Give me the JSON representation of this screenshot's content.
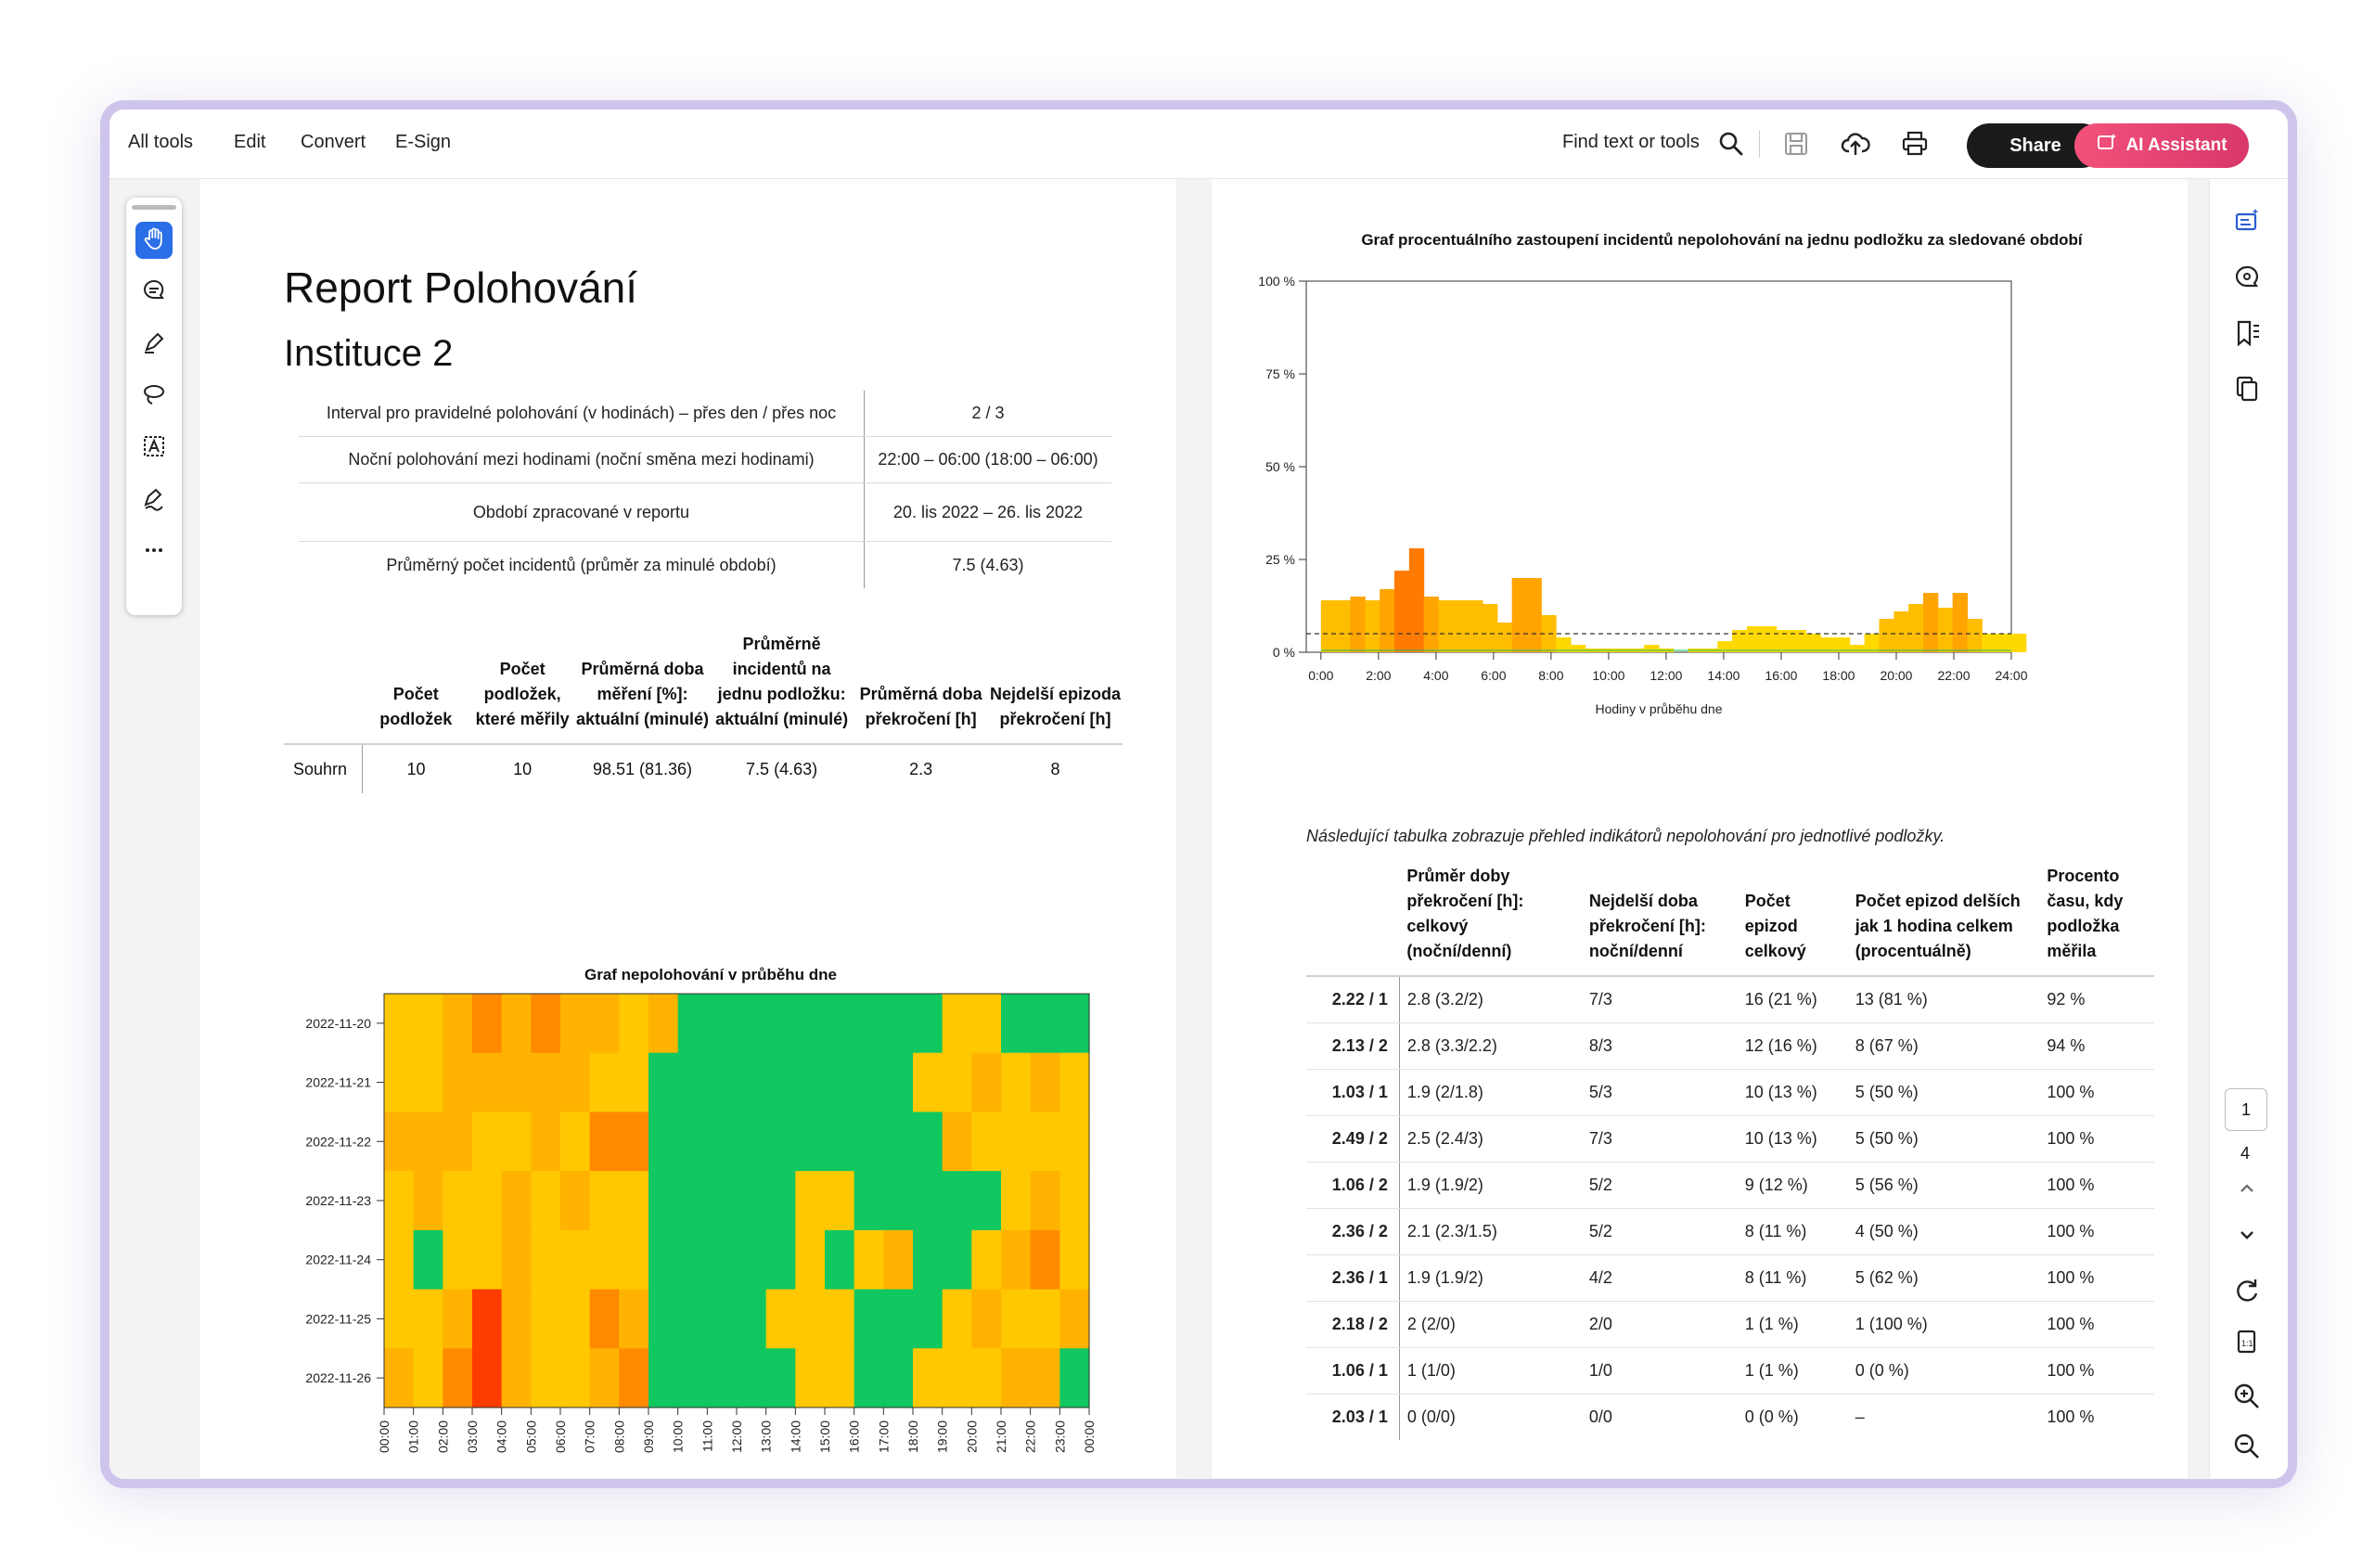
{
  "toolbar": {
    "menu": [
      "All tools",
      "Edit",
      "Convert",
      "E-Sign"
    ],
    "find_label": "Find text or tools",
    "share_label": "Share",
    "ai_label": "AI Assistant"
  },
  "left_tools": [
    "hand-icon",
    "comment-icon",
    "highlight-pen-icon",
    "lasso-draw-icon",
    "text-select-icon",
    "signature-icon",
    "more-icon"
  ],
  "right_rail": {
    "current_page": "1",
    "total_pages": "4"
  },
  "report": {
    "title": "Report Polohování",
    "subtitle": "Instituce 2",
    "info_rows": [
      {
        "label": "Interval pro pravidelné polohování (v hodinách) – přes den / přes noc",
        "value": "2 / 3"
      },
      {
        "label": "Noční polohování mezi hodinami (noční směna mezi hodinami)",
        "value": "22:00 – 06:00 (18:00 – 06:00)"
      },
      {
        "label": "Období zpracované v reportu",
        "value": "20. lis 2022 – 26. lis 2022"
      },
      {
        "label": "Průměrný počet incidentů (průměr za minulé období)",
        "value": "7.5 (4.63)"
      }
    ],
    "summary_headers": [
      "",
      "Počet podložek",
      "Počet podložek, které měřily",
      "Průměrná doba měření [%]: aktuální (minulé)",
      "Průměrně incidentů na jednu podložku: aktuální (minulé)",
      "Průměrná doba překročení [h]",
      "Nejdelší epizoda překročení [h]"
    ],
    "summary_row": [
      "Souhrn",
      "10",
      "10",
      "98.51 (81.36)",
      "7.5 (4.63)",
      "2.3",
      "8"
    ],
    "heatmap_title": "Graf nepolohování v průběhu dne",
    "heatmap_dates": [
      "2022-11-20",
      "2022-11-21",
      "2022-11-22",
      "2022-11-23",
      "2022-11-24",
      "2022-11-25",
      "2022-11-26"
    ],
    "heatmap_hours": [
      "00:00",
      "01:00",
      "02:00",
      "03:00",
      "04:00",
      "05:00",
      "06:00",
      "07:00",
      "08:00",
      "09:00",
      "10:00",
      "11:00",
      "12:00",
      "13:00",
      "14:00",
      "15:00",
      "16:00",
      "17:00",
      "18:00",
      "19:00",
      "20:00",
      "21:00",
      "22:00",
      "23:00",
      "00:00"
    ],
    "heatmap_colors": {
      "green": "#10c760",
      "yellow": "#ffc800",
      "lightorange": "#ffb300",
      "orange": "#ff8a00",
      "red": "#ff3c00"
    },
    "line_chart_title": "Graf procentuálního zastoupení incidentů nepolohování na jednu podložku za sledované období",
    "line_chart_xlabel": "Hodiny v průběhu dne",
    "table_caption": "Následující tabulka zobrazuje přehled indikátorů nepolohování pro jednotlivé podložky.",
    "pad_headers": [
      "",
      "Průměr doby překročení [h]: celkový (noční/denní)",
      "Nejdelší doba překročení [h]: noční/denní",
      "Počet epizod celkový",
      "Počet epizod delších jak 1 hodina celkem (procentuálně)",
      "Procento času, kdy podložka měřila"
    ],
    "pad_rows": [
      [
        "2.22 / 1",
        "2.8 (3.2/2)",
        "7/3",
        "16 (21 %)",
        "13 (81 %)",
        "92 %"
      ],
      [
        "2.13 / 2",
        "2.8 (3.3/2.2)",
        "8/3",
        "12 (16 %)",
        "8 (67 %)",
        "94 %"
      ],
      [
        "1.03 / 1",
        "1.9 (2/1.8)",
        "5/3",
        "10 (13 %)",
        "5 (50 %)",
        "100 %"
      ],
      [
        "2.49 / 2",
        "2.5 (2.4/3)",
        "7/3",
        "10 (13 %)",
        "5 (50 %)",
        "100 %"
      ],
      [
        "1.06 / 2",
        "1.9 (1.9/2)",
        "5/2",
        "9 (12 %)",
        "5 (56 %)",
        "100 %"
      ],
      [
        "2.36 / 2",
        "2.1 (2.3/1.5)",
        "5/2",
        "8 (11 %)",
        "4 (50 %)",
        "100 %"
      ],
      [
        "2.36 / 1",
        "1.9 (1.9/2)",
        "4/2",
        "8 (11 %)",
        "5 (62 %)",
        "100 %"
      ],
      [
        "2.18 / 2",
        "2 (2/0)",
        "2/0",
        "1 (1 %)",
        "1 (100 %)",
        "100 %"
      ],
      [
        "1.06 / 1",
        "1 (1/0)",
        "1/0",
        "1 (1 %)",
        "0 (0 %)",
        "100 %"
      ],
      [
        "2.03 / 1",
        "0 (0/0)",
        "0/0",
        "0 (0 %)",
        "–",
        "100 %"
      ]
    ]
  },
  "chart_data": [
    {
      "type": "heatmap",
      "title": "Graf nepolohování v průběhu dne",
      "y_categories": [
        "2022-11-20",
        "2022-11-21",
        "2022-11-22",
        "2022-11-23",
        "2022-11-24",
        "2022-11-25",
        "2022-11-26"
      ],
      "x_categories": [
        "00:00",
        "01:00",
        "02:00",
        "03:00",
        "04:00",
        "05:00",
        "06:00",
        "07:00",
        "08:00",
        "09:00",
        "10:00",
        "11:00",
        "12:00",
        "13:00",
        "14:00",
        "15:00",
        "16:00",
        "17:00",
        "18:00",
        "19:00",
        "20:00",
        "21:00",
        "22:00",
        "23:00"
      ],
      "levels_legend": "0=green, 1=yellow, 2=light orange, 3=orange, 4=red",
      "values": [
        [
          1,
          1,
          2,
          3,
          2,
          3,
          2,
          2,
          1,
          2,
          0,
          0,
          0,
          0,
          0,
          0,
          0,
          0,
          0,
          1,
          1,
          0,
          0,
          0
        ],
        [
          1,
          1,
          2,
          2,
          2,
          2,
          2,
          1,
          1,
          0,
          0,
          0,
          0,
          0,
          0,
          0,
          0,
          0,
          1,
          1,
          2,
          1,
          2,
          1
        ],
        [
          2,
          2,
          2,
          1,
          1,
          2,
          1,
          3,
          3,
          0,
          0,
          0,
          0,
          0,
          0,
          0,
          0,
          0,
          0,
          2,
          1,
          1,
          1,
          1
        ],
        [
          1,
          2,
          1,
          1,
          2,
          1,
          2,
          1,
          1,
          0,
          0,
          0,
          0,
          0,
          1,
          1,
          0,
          0,
          0,
          0,
          0,
          1,
          2,
          1
        ],
        [
          1,
          0,
          1,
          1,
          2,
          1,
          1,
          1,
          1,
          0,
          0,
          0,
          0,
          0,
          1,
          0,
          1,
          2,
          0,
          0,
          1,
          2,
          3,
          1
        ],
        [
          1,
          1,
          2,
          4,
          2,
          1,
          1,
          3,
          2,
          0,
          0,
          0,
          0,
          1,
          1,
          1,
          0,
          0,
          0,
          1,
          2,
          1,
          1,
          2
        ],
        [
          2,
          1,
          3,
          4,
          2,
          1,
          1,
          2,
          3,
          0,
          0,
          0,
          0,
          0,
          1,
          1,
          0,
          0,
          1,
          1,
          1,
          2,
          2,
          0
        ]
      ]
    },
    {
      "type": "area",
      "title": "Graf procentuálního zastoupení incidentů nepolohování na jednu podložku za sledované období",
      "xlabel": "Hodiny v průběhu dne",
      "ylabel": "",
      "x_ticks": [
        "0:00",
        "2:00",
        "4:00",
        "6:00",
        "8:00",
        "10:00",
        "12:00",
        "14:00",
        "16:00",
        "18:00",
        "20:00",
        "22:00",
        "24:00"
      ],
      "y_ticks": [
        "0 %",
        "25 %",
        "50 %",
        "75 %",
        "100 %"
      ],
      "ylim": [
        0,
        100
      ],
      "xlim": [
        0,
        24
      ],
      "reference_line": 5,
      "x": [
        0,
        0.5,
        1,
        1.5,
        2,
        2.5,
        3,
        3.5,
        4,
        4.5,
        5,
        5.5,
        6,
        6.5,
        7,
        7.5,
        8,
        8.5,
        9,
        9.5,
        10,
        10.5,
        11,
        11.5,
        12,
        12.5,
        13,
        13.5,
        14,
        14.5,
        15,
        15.5,
        16,
        16.5,
        17,
        17.5,
        18,
        18.5,
        19,
        19.5,
        20,
        20.5,
        21,
        21.5,
        22,
        22.5,
        23,
        23.5
      ],
      "values": [
        14,
        14,
        15,
        14,
        17,
        22,
        28,
        15,
        14,
        14,
        14,
        13,
        8,
        20,
        20,
        10,
        4,
        2,
        1,
        1,
        1,
        1,
        2,
        1,
        0,
        1,
        1,
        3,
        6,
        7,
        7,
        6,
        6,
        5,
        4,
        4,
        2,
        5,
        9,
        11,
        13,
        16,
        12,
        16,
        9,
        5,
        5,
        5
      ]
    }
  ]
}
